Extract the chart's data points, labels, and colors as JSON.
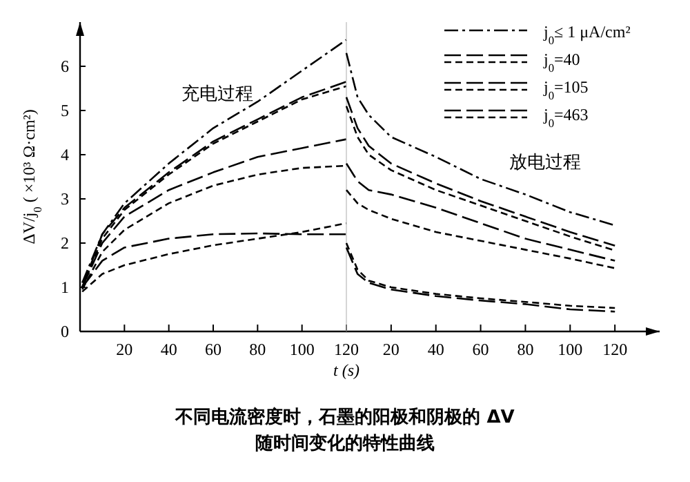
{
  "chart_data": [
    {
      "type": "line",
      "ylabel": "ΔV/j$_{0}$ ( ×10³ Ω·cm²)",
      "xlabel": "t (s)",
      "xlim": [
        0,
        120
      ],
      "ylim": [
        0,
        7
      ],
      "xticks": [
        20,
        40,
        60,
        80,
        100,
        120
      ],
      "yticks": [
        0,
        1,
        2,
        3,
        4,
        5,
        6
      ],
      "grid": false,
      "marker": "none",
      "series": [
        {
          "color": "#000000",
          "line_style": "dashdot",
          "x": [
            1,
            10,
            20,
            40,
            60,
            80,
            100,
            120
          ],
          "values": [
            1.1,
            2.2,
            2.9,
            3.8,
            4.6,
            5.2,
            5.9,
            6.6
          ]
        },
        {
          "color": "#000000",
          "line_style": "longdash",
          "x": [
            1,
            10,
            20,
            40,
            60,
            80,
            100,
            120
          ],
          "values": [
            1.0,
            2.2,
            2.8,
            3.6,
            4.3,
            4.8,
            5.3,
            5.65
          ]
        },
        {
          "color": "#000000",
          "line_style": "dashed",
          "x": [
            1,
            10,
            20,
            40,
            60,
            80,
            100,
            120
          ],
          "values": [
            1.0,
            2.1,
            2.75,
            3.55,
            4.25,
            4.75,
            5.25,
            5.55
          ]
        },
        {
          "color": "#000000",
          "line_style": "longdash",
          "x": [
            1,
            10,
            20,
            40,
            60,
            80,
            100,
            120
          ],
          "values": [
            1.0,
            2.0,
            2.6,
            3.2,
            3.6,
            3.95,
            4.15,
            4.35
          ]
        },
        {
          "color": "#000000",
          "line_style": "dashed",
          "x": [
            1,
            10,
            20,
            40,
            60,
            80,
            100,
            120
          ],
          "values": [
            0.95,
            1.8,
            2.3,
            2.9,
            3.3,
            3.55,
            3.7,
            3.75
          ]
        },
        {
          "color": "#000000",
          "line_style": "longdash",
          "x": [
            1,
            10,
            20,
            40,
            60,
            80,
            100,
            120
          ],
          "values": [
            1.0,
            1.6,
            1.9,
            2.1,
            2.2,
            2.22,
            2.2,
            2.2
          ]
        },
        {
          "color": "#000000",
          "line_style": "dashed",
          "x": [
            1,
            10,
            20,
            40,
            60,
            80,
            100,
            120
          ],
          "values": [
            0.9,
            1.3,
            1.5,
            1.75,
            1.95,
            2.1,
            2.25,
            2.45
          ]
        }
      ],
      "annotations": [
        "充电过程"
      ]
    },
    {
      "type": "line",
      "xlim": [
        0,
        140
      ],
      "ylim": [
        0,
        7
      ],
      "xticks": [
        20,
        40,
        60,
        80,
        100,
        120
      ],
      "tick_labels": "x",
      "grid": false,
      "legend": "top right",
      "marker": "none",
      "series": [
        {
          "name": "j$_{0}$≤ 1 μA/cm²",
          "color": "#000000",
          "line_style": "dashdot",
          "x": [
            0,
            5,
            10,
            20,
            40,
            60,
            80,
            100,
            120
          ],
          "values": [
            6.3,
            5.3,
            4.9,
            4.4,
            3.95,
            3.45,
            3.1,
            2.7,
            2.4
          ]
        },
        {
          "name": "j$_{0}$=40",
          "color": "#000000",
          "line_style": "longdash",
          "x": [
            0,
            5,
            10,
            20,
            40,
            60,
            80,
            100,
            120
          ],
          "values": [
            5.3,
            4.6,
            4.2,
            3.8,
            3.35,
            2.95,
            2.6,
            2.25,
            1.94
          ]
        },
        {
          "color": "#000000",
          "line_style": "dashed",
          "x": [
            0,
            5,
            10,
            20,
            40,
            60,
            80,
            100,
            120
          ],
          "values": [
            5.1,
            4.4,
            4.0,
            3.65,
            3.2,
            2.85,
            2.5,
            2.15,
            1.83
          ]
        },
        {
          "name": "j$_{0}$=105",
          "color": "#000000",
          "line_style": "longdash",
          "x": [
            0,
            5,
            10,
            20,
            40,
            60,
            80,
            100,
            120
          ],
          "values": [
            3.8,
            3.4,
            3.2,
            3.1,
            2.8,
            2.45,
            2.1,
            1.85,
            1.6
          ]
        },
        {
          "color": "#000000",
          "line_style": "dashed",
          "x": [
            0,
            5,
            10,
            20,
            40,
            60,
            80,
            100,
            120
          ],
          "values": [
            3.2,
            2.9,
            2.75,
            2.55,
            2.25,
            2.05,
            1.85,
            1.65,
            1.43
          ]
        },
        {
          "name": "j$_{0}$=463",
          "color": "#000000",
          "line_style": "longdash",
          "x": [
            0,
            5,
            10,
            20,
            40,
            60,
            80,
            100,
            120
          ],
          "values": [
            1.9,
            1.3,
            1.1,
            0.95,
            0.8,
            0.7,
            0.62,
            0.5,
            0.45
          ]
        },
        {
          "color": "#000000",
          "line_style": "dashed",
          "x": [
            0,
            5,
            10,
            20,
            40,
            60,
            80,
            100,
            120
          ],
          "values": [
            2.0,
            1.4,
            1.15,
            1.0,
            0.85,
            0.75,
            0.67,
            0.58,
            0.53
          ]
        }
      ],
      "annotations": [
        "放电过程",
        "不同电流密度时，石墨的阳极和阴极的 ΔV",
        "随时间变化的特性曲线"
      ]
    }
  ]
}
